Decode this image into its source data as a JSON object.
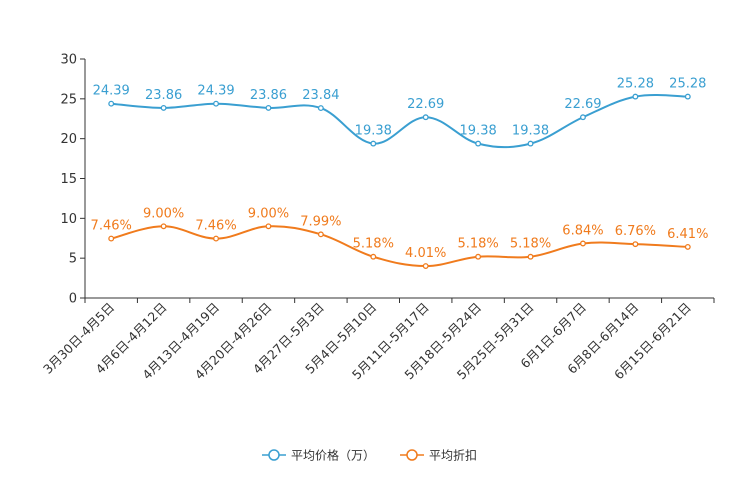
{
  "chart_data": {
    "type": "line",
    "title": "",
    "xlabel": "",
    "ylabel": "",
    "ylim": [
      0,
      30
    ],
    "yticks": [
      "0",
      "5",
      "10",
      "15",
      "20",
      "25",
      "30"
    ],
    "grid": false,
    "legend_position": "bottom-center",
    "categories": [
      "3月30日-4月5日",
      "4月6日-4月12日",
      "4月13日-4月19日",
      "4月20日-4月26日",
      "4月27日-5月3日",
      "5月4日-5月10日",
      "5月11日-5月17日",
      "5月18日-5月24日",
      "5月25日-5月31日",
      "6月1日-6月7日",
      "6月8日-6月14日",
      "6月15日-6月21日"
    ],
    "series": [
      {
        "name": "平均价格（万）",
        "color": "#3a9fd1",
        "values": [
          24.39,
          23.86,
          24.39,
          23.86,
          23.84,
          19.38,
          22.69,
          19.38,
          19.38,
          22.69,
          25.28,
          25.28
        ],
        "labels": [
          "24.39",
          "23.86",
          "24.39",
          "23.86",
          "23.84",
          "19.38",
          "22.69",
          "19.38",
          "19.38",
          "22.69",
          "25.28",
          "25.28"
        ]
      },
      {
        "name": "平均折扣",
        "color": "#f07b1d",
        "values": [
          7.46,
          9.0,
          7.46,
          9.0,
          7.99,
          5.18,
          4.01,
          5.18,
          5.18,
          6.84,
          6.76,
          6.41
        ],
        "labels": [
          "7.46%",
          "9.00%",
          "7.46%",
          "9.00%",
          "7.99%",
          "5.18%",
          "4.01%",
          "5.18%",
          "5.18%",
          "6.84%",
          "6.76%",
          "6.41%"
        ]
      }
    ]
  }
}
